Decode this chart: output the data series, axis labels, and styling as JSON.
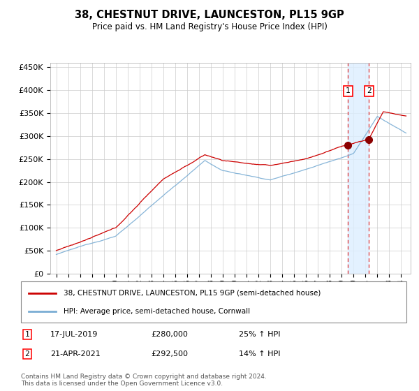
{
  "title": "38, CHESTNUT DRIVE, LAUNCESTON, PL15 9GP",
  "subtitle": "Price paid vs. HM Land Registry's House Price Index (HPI)",
  "ylabel_ticks": [
    "£0",
    "£50K",
    "£100K",
    "£150K",
    "£200K",
    "£250K",
    "£300K",
    "£350K",
    "£400K",
    "£450K"
  ],
  "ytick_vals": [
    0,
    50000,
    100000,
    150000,
    200000,
    250000,
    300000,
    350000,
    400000,
    450000
  ],
  "ylim": [
    0,
    460000
  ],
  "xlim_start": 1994.5,
  "xlim_end": 2024.8,
  "line1_color": "#cc0000",
  "line2_color": "#7aadd4",
  "transaction1_x": 2019.54,
  "transaction1_y": 280000,
  "transaction2_x": 2021.3,
  "transaction2_y": 292500,
  "vline1_x": 2019.54,
  "vline2_x": 2021.3,
  "shade_color": "#ddeeff",
  "legend1_label": "38, CHESTNUT DRIVE, LAUNCESTON, PL15 9GP (semi-detached house)",
  "legend2_label": "HPI: Average price, semi-detached house, Cornwall",
  "note1_num": "1",
  "note1_date": "17-JUL-2019",
  "note1_price": "£280,000",
  "note1_hpi": "25% ↑ HPI",
  "note2_num": "2",
  "note2_date": "21-APR-2021",
  "note2_price": "£292,500",
  "note2_hpi": "14% ↑ HPI",
  "footer": "Contains HM Land Registry data © Crown copyright and database right 2024.\nThis data is licensed under the Open Government Licence v3.0.",
  "background_color": "#ffffff",
  "grid_color": "#cccccc"
}
